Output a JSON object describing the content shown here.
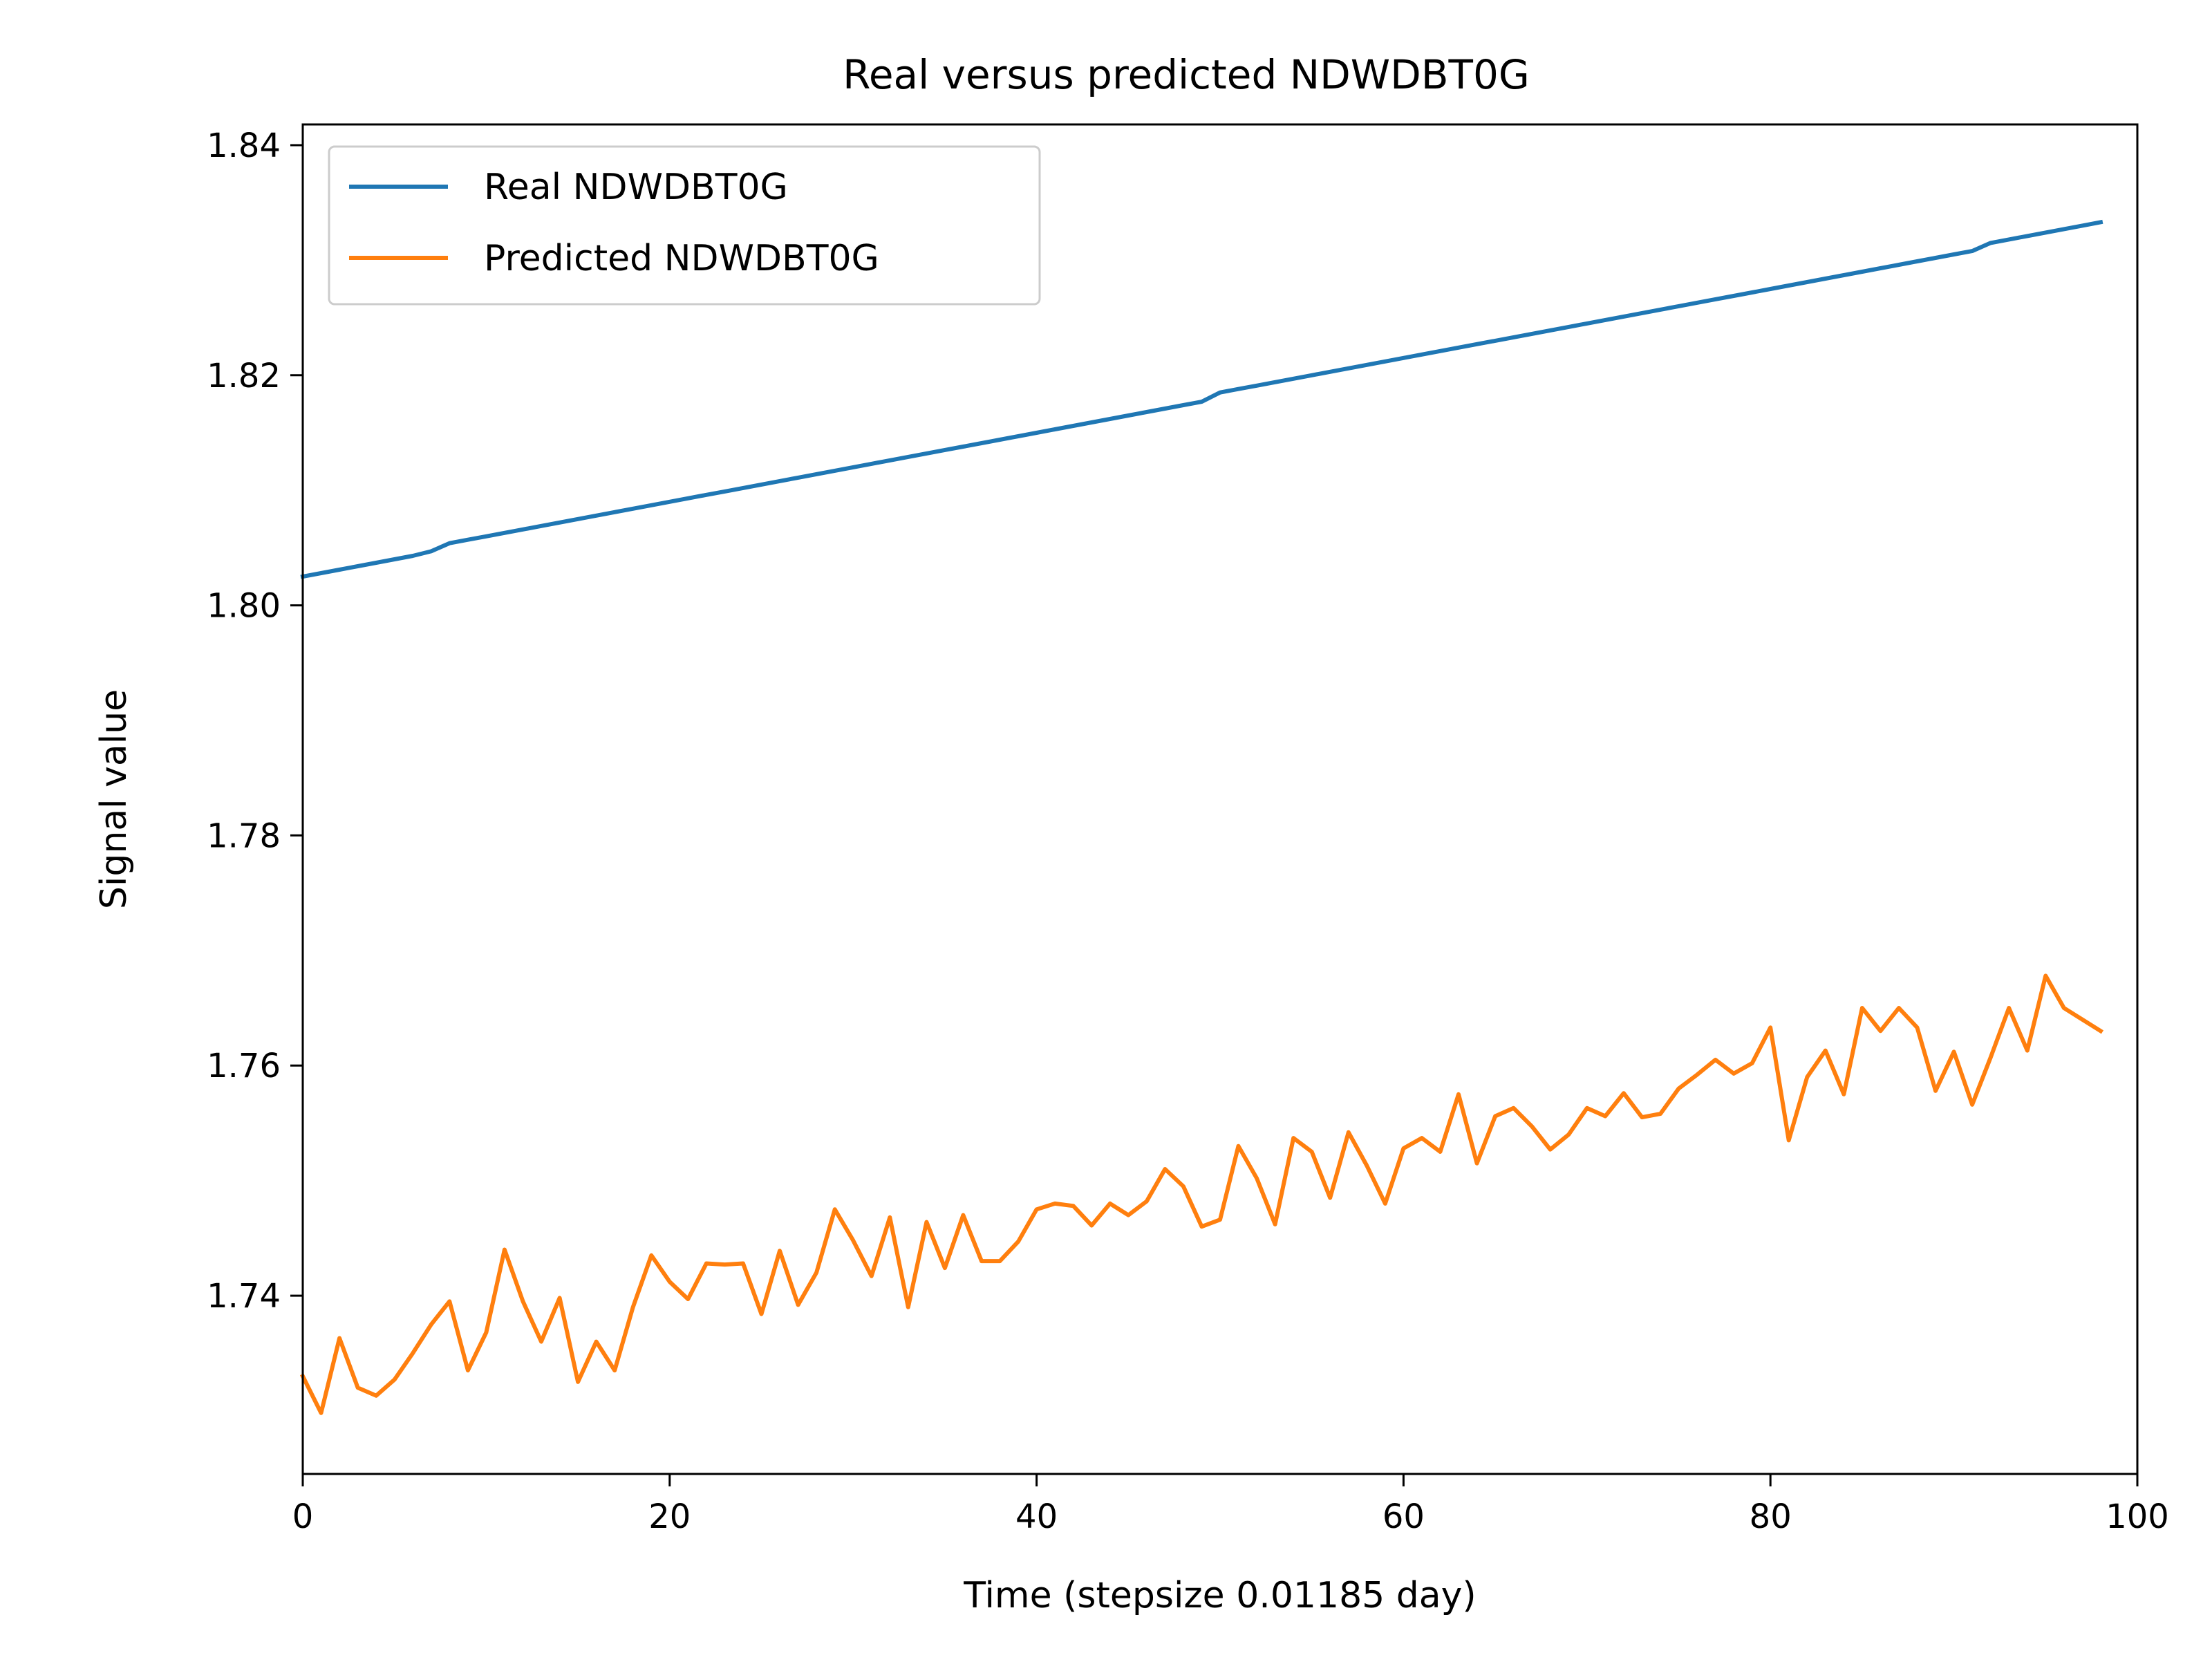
{
  "chart_data": {
    "type": "line",
    "title": "Real versus predicted NDWDBT0G",
    "xlabel": "Time (stepsize 0.01185 day)",
    "ylabel": "Signal value",
    "xlim": [
      0,
      100
    ],
    "ylim": [
      1.7245,
      1.8418
    ],
    "xticks": [
      0,
      20,
      40,
      60,
      80,
      100
    ],
    "xtick_labels": [
      "0",
      "20",
      "40",
      "60",
      "80",
      "100"
    ],
    "yticks": [
      1.74,
      1.76,
      1.78,
      1.8,
      1.82,
      1.84
    ],
    "ytick_labels": [
      "1.74",
      "1.76",
      "1.78",
      "1.80",
      "1.82",
      "1.84"
    ],
    "grid": false,
    "legend_position": "top-left",
    "x": [
      0,
      1,
      2,
      3,
      4,
      5,
      6,
      7,
      8,
      9,
      10,
      11,
      12,
      13,
      14,
      15,
      16,
      17,
      18,
      19,
      20,
      21,
      22,
      23,
      24,
      25,
      26,
      27,
      28,
      29,
      30,
      31,
      32,
      33,
      34,
      35,
      36,
      37,
      38,
      39,
      40,
      41,
      42,
      43,
      44,
      45,
      46,
      47,
      48,
      49,
      50,
      51,
      52,
      53,
      54,
      55,
      56,
      57,
      58,
      59,
      60,
      61,
      62,
      63,
      64,
      65,
      66,
      67,
      68,
      69,
      70,
      71,
      72,
      73,
      74,
      75,
      76,
      77,
      78,
      79,
      80,
      81,
      82,
      83,
      84,
      85,
      86,
      87,
      88,
      89,
      90,
      91,
      92,
      93,
      94,
      95,
      96,
      97,
      98
    ],
    "series": [
      {
        "name": "Real NDWDBT0G",
        "color": "#1f77b4",
        "values": [
          1.8025,
          1.8028,
          1.8031,
          1.8034,
          1.8037,
          1.804,
          1.8043,
          1.8047,
          1.8054,
          1.8057,
          1.806,
          1.8063,
          1.8066,
          1.8069,
          1.8072,
          1.8075,
          1.8078,
          1.8081,
          1.8084,
          1.8087,
          1.809,
          1.8093,
          1.8096,
          1.8099,
          1.8102,
          1.8105,
          1.8108,
          1.8111,
          1.8114,
          1.8117,
          1.812,
          1.8123,
          1.8126,
          1.8129,
          1.8132,
          1.8135,
          1.8138,
          1.8141,
          1.8144,
          1.8147,
          1.815,
          1.8153,
          1.8156,
          1.8159,
          1.8162,
          1.8165,
          1.8168,
          1.8171,
          1.8174,
          1.8177,
          1.8185,
          1.8188,
          1.8191,
          1.8194,
          1.8197,
          1.82,
          1.8203,
          1.8206,
          1.8209,
          1.8212,
          1.8215,
          1.8218,
          1.8221,
          1.8224,
          1.8227,
          1.823,
          1.8233,
          1.8236,
          1.8239,
          1.8242,
          1.8245,
          1.8248,
          1.8251,
          1.8254,
          1.8257,
          1.826,
          1.8263,
          1.8266,
          1.8269,
          1.8272,
          1.8275,
          1.8278,
          1.8281,
          1.8284,
          1.8287,
          1.829,
          1.8293,
          1.8296,
          1.8299,
          1.8302,
          1.8305,
          1.8308,
          1.8315,
          1.8318,
          1.8321,
          1.8324,
          1.8327,
          1.833,
          1.8333
        ]
      },
      {
        "name": "Predicted NDWDBT0G",
        "color": "#ff7f0e",
        "values": [
          1.733,
          1.7298,
          1.7363,
          1.732,
          1.7313,
          1.7327,
          1.735,
          1.7375,
          1.7395,
          1.7335,
          1.7368,
          1.744,
          1.7395,
          1.736,
          1.7398,
          1.7325,
          1.736,
          1.7335,
          1.739,
          1.7435,
          1.7412,
          1.7397,
          1.7428,
          1.7427,
          1.7428,
          1.7384,
          1.7439,
          1.7392,
          1.742,
          1.7475,
          1.7448,
          1.7417,
          1.7468,
          1.739,
          1.7464,
          1.7424,
          1.747,
          1.743,
          1.743,
          1.7447,
          1.7475,
          1.748,
          1.7478,
          1.7461,
          1.748,
          1.747,
          1.7482,
          1.751,
          1.7495,
          1.746,
          1.7466,
          1.753,
          1.7502,
          1.7462,
          1.7537,
          1.7525,
          1.7485,
          1.7542,
          1.7513,
          1.748,
          1.7528,
          1.7537,
          1.7525,
          1.7575,
          1.7515,
          1.7556,
          1.7563,
          1.7547,
          1.7527,
          1.754,
          1.7563,
          1.7556,
          1.7576,
          1.7555,
          1.7558,
          1.758,
          1.7592,
          1.7605,
          1.7593,
          1.7602,
          1.7633,
          1.7535,
          1.759,
          1.7613,
          1.7575,
          1.765,
          1.763,
          1.765,
          1.7633,
          1.7578,
          1.7612,
          1.7566,
          1.7607,
          1.765,
          1.7613,
          1.7678,
          1.765,
          1.764,
          1.763
        ]
      }
    ]
  }
}
